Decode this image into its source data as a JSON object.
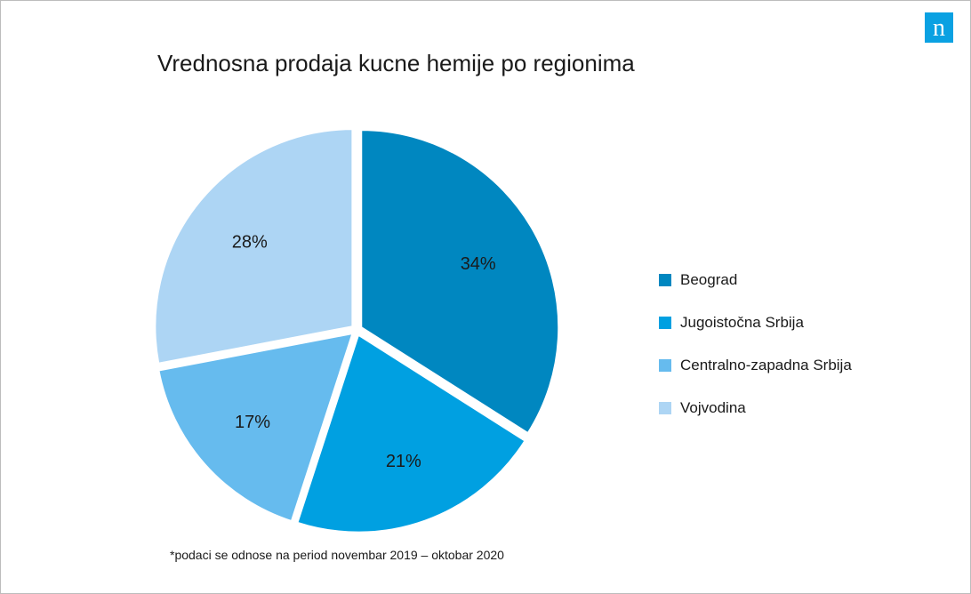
{
  "brand": {
    "logo_glyph": "n",
    "logo_color": "#0aa1e2",
    "icon": "nielsen-logo-icon"
  },
  "chart_data": {
    "type": "pie",
    "title": "Vrednosna prodaja kucne hemije po regionima",
    "categories": [
      "Beograd",
      "Jugoistočna Srbija",
      "Centralno-zapadna Srbija",
      "Vojvodina"
    ],
    "values": [
      34,
      21,
      17,
      28
    ],
    "labels": [
      "34%",
      "21%",
      "17%",
      "28%"
    ],
    "colors": [
      "#0087c0",
      "#00a0e1",
      "#66bbee",
      "#add5f4"
    ],
    "start_angle_deg": 0,
    "direction": "clockwise",
    "exploded": true,
    "legend_position": "right",
    "footnote": "*podaci se odnose na period novembar 2019 – oktobar 2020"
  }
}
